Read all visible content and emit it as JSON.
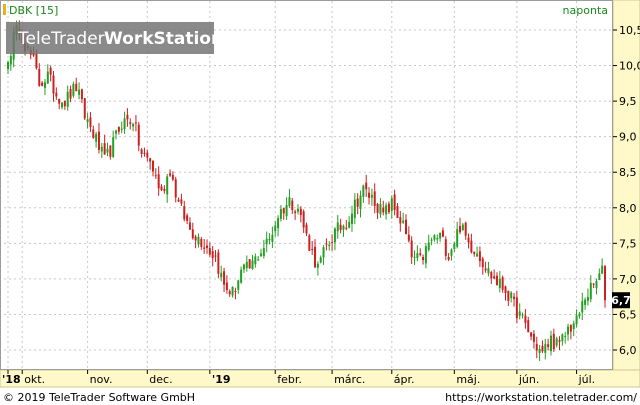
{
  "chart_data": {
    "type": "candlestick",
    "title": "DBK [15]",
    "period": "naponta",
    "y_ticks": [
      "10,5",
      "10,0",
      "9,5",
      "9,0",
      "8,5",
      "8,0",
      "7,5",
      "7,0",
      "6,5",
      "6,0"
    ],
    "y_tick_values": [
      10.5,
      10.0,
      9.5,
      9.0,
      8.5,
      8.0,
      7.5,
      7.0,
      6.5,
      6.0
    ],
    "ylim": [
      5.8,
      10.65
    ],
    "x_ticks": [
      {
        "label": "'18",
        "date": "2018-09-24",
        "bold": true
      },
      {
        "label": "okt.",
        "date": "2018-10-01",
        "bold": false
      },
      {
        "label": "nov.",
        "date": "2018-11-01",
        "bold": false
      },
      {
        "label": "dec.",
        "date": "2018-12-01",
        "bold": false
      },
      {
        "label": "'19",
        "date": "2019-01-01",
        "bold": true
      },
      {
        "label": "febr.",
        "date": "2019-02-01",
        "bold": false
      },
      {
        "label": "márc.",
        "date": "2019-03-01",
        "bold": false
      },
      {
        "label": "ápr.",
        "date": "2019-04-01",
        "bold": false
      },
      {
        "label": "máj.",
        "date": "2019-05-01",
        "bold": false
      },
      {
        "label": "jún.",
        "date": "2019-06-01",
        "bold": false
      },
      {
        "label": "júl.",
        "date": "2019-07-01",
        "bold": false
      }
    ],
    "last_value": "6,7",
    "grid": true,
    "close_series": [
      [
        "2018-09-24",
        10.05
      ],
      [
        "2018-09-26",
        10.4
      ],
      [
        "2018-09-28",
        10.55
      ],
      [
        "2018-10-02",
        10.3
      ],
      [
        "2018-10-05",
        10.05
      ],
      [
        "2018-10-09",
        9.75
      ],
      [
        "2018-10-12",
        9.85
      ],
      [
        "2018-10-17",
        9.6
      ],
      [
        "2018-10-22",
        9.5
      ],
      [
        "2018-10-26",
        9.7
      ],
      [
        "2018-10-31",
        9.3
      ],
      [
        "2018-11-05",
        9.05
      ],
      [
        "2018-11-09",
        8.65
      ],
      [
        "2018-11-14",
        8.9
      ],
      [
        "2018-11-19",
        9.2
      ],
      [
        "2018-11-23",
        9.25
      ],
      [
        "2018-11-28",
        8.75
      ],
      [
        "2018-12-03",
        8.65
      ],
      [
        "2018-12-07",
        8.2
      ],
      [
        "2018-12-12",
        8.55
      ],
      [
        "2018-12-17",
        8.05
      ],
      [
        "2018-12-21",
        7.7
      ],
      [
        "2018-12-28",
        7.5
      ],
      [
        "2019-01-03",
        7.3
      ],
      [
        "2019-01-08",
        6.9
      ],
      [
        "2019-01-11",
        6.8
      ],
      [
        "2019-01-16",
        7.1
      ],
      [
        "2019-01-21",
        7.15
      ],
      [
        "2019-01-25",
        7.4
      ],
      [
        "2019-01-30",
        7.55
      ],
      [
        "2019-02-04",
        7.9
      ],
      [
        "2019-02-08",
        8.1
      ],
      [
        "2019-02-13",
        8.0
      ],
      [
        "2019-02-18",
        7.6
      ],
      [
        "2019-02-22",
        7.15
      ],
      [
        "2019-02-27",
        7.45
      ],
      [
        "2019-03-04",
        7.65
      ],
      [
        "2019-03-08",
        7.8
      ],
      [
        "2019-03-13",
        8.05
      ],
      [
        "2019-03-18",
        8.25
      ],
      [
        "2019-03-22",
        8.1
      ],
      [
        "2019-03-27",
        7.9
      ],
      [
        "2019-04-01",
        8.05
      ],
      [
        "2019-04-05",
        7.75
      ],
      [
        "2019-04-10",
        7.3
      ],
      [
        "2019-04-15",
        7.25
      ],
      [
        "2019-04-19",
        7.55
      ],
      [
        "2019-04-24",
        7.6
      ],
      [
        "2019-04-29",
        7.35
      ],
      [
        "2019-05-03",
        7.75
      ],
      [
        "2019-05-08",
        7.5
      ],
      [
        "2019-05-13",
        7.4
      ],
      [
        "2019-05-17",
        7.1
      ],
      [
        "2019-05-22",
        6.95
      ],
      [
        "2019-05-27",
        6.85
      ],
      [
        "2019-05-31",
        6.55
      ],
      [
        "2019-06-05",
        6.35
      ],
      [
        "2019-06-10",
        6.1
      ],
      [
        "2019-06-13",
        5.95
      ],
      [
        "2019-06-18",
        6.15
      ],
      [
        "2019-06-21",
        6.05
      ],
      [
        "2019-06-26",
        6.3
      ],
      [
        "2019-07-01",
        6.4
      ],
      [
        "2019-07-04",
        6.75
      ],
      [
        "2019-07-09",
        6.9
      ],
      [
        "2019-07-12",
        7.1
      ],
      [
        "2019-07-15",
        6.7
      ]
    ]
  },
  "watermark": {
    "part1": "TeleTrader",
    "part2": "WorkStation"
  },
  "footer": {
    "left": "© 2019 TeleTrader Software GmbH",
    "right": "https://workstation.teletrader.com/"
  },
  "colors": {
    "up": "#22a022",
    "down": "#cc1f1f",
    "axis_bg": "#fff8c8",
    "grid": "#c8c8c8",
    "title": "#1a8a1a"
  }
}
